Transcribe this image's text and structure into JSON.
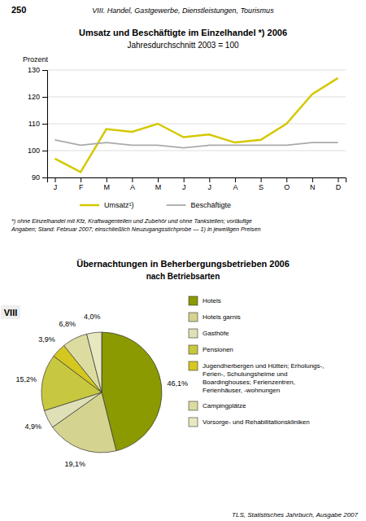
{
  "page": {
    "number": "250",
    "header": "VIII. Handel, Gastgewerbe, Dienstleistungen, Tourismus",
    "footer": "TLS, Statistisches Jahrbuch, Ausgabe 2007",
    "section_label": "VIII"
  },
  "chart_data": [
    {
      "type": "line",
      "title": "Umsatz und Beschäftigte im Einzelhandel *) 2006",
      "subtitle": "Jahresdurchschnitt 2003 = 100",
      "ylabel": "Prozent",
      "categories": [
        "J",
        "F",
        "M",
        "A",
        "M",
        "J",
        "J",
        "A",
        "S",
        "O",
        "N",
        "D"
      ],
      "series": [
        {
          "name": "Umsatz¹)",
          "color": "#d4c800",
          "values": [
            97,
            92,
            108,
            107,
            110,
            105,
            106,
            103,
            104,
            110,
            121,
            127
          ]
        },
        {
          "name": "Beschäftigte",
          "color": "#aaaaaa",
          "values": [
            104,
            102,
            103,
            102,
            102,
            101,
            102,
            102,
            102,
            102,
            103,
            103
          ]
        }
      ],
      "ylim": [
        90,
        130
      ],
      "yticks": [
        90,
        100,
        110,
        120,
        130
      ],
      "grid": true,
      "legend": "bottom",
      "annotations": [
        "*) ohne Einzelhandel mit Kfz, Kraftwagenteilen und Zubehör und ohne Tankstellen; vorläufige",
        "Angaben; Stand: Februar 2007; einschließlich Neuzugangsstichprobe  —  1) in jeweiligen Preisen"
      ]
    },
    {
      "type": "pie",
      "title": "Übernachtungen in Beherbergungsbetrieben 2006",
      "subtitle": "nach Betriebsarten",
      "categories": [
        "Hotels",
        "Hotels garnis",
        "Gasthöfe",
        "Pensionen",
        "Jugendherbergen und Hütten; Erholungs-,\nFerien-, Schulungsheime und\nBoardinghouses; Ferienzentren,\nFerienhäuser, -wohnungen",
        "Campingplätze",
        "Vorsorge- und Rehabilitationskliniken"
      ],
      "values": [
        46.1,
        19.1,
        4.9,
        15.2,
        3.9,
        6.8,
        4.0
      ],
      "value_labels": [
        "46,1%",
        "19,1%",
        "4,9%",
        "15,2%",
        "3,9%",
        "6,8%",
        "4,0%"
      ],
      "colors": [
        "#8a9a00",
        "#d4d490",
        "#e0e0b8",
        "#c8c840",
        "#d4c820",
        "#dcdca0",
        "#e8e8c0"
      ],
      "data_labels": true,
      "legend": "right"
    }
  ]
}
